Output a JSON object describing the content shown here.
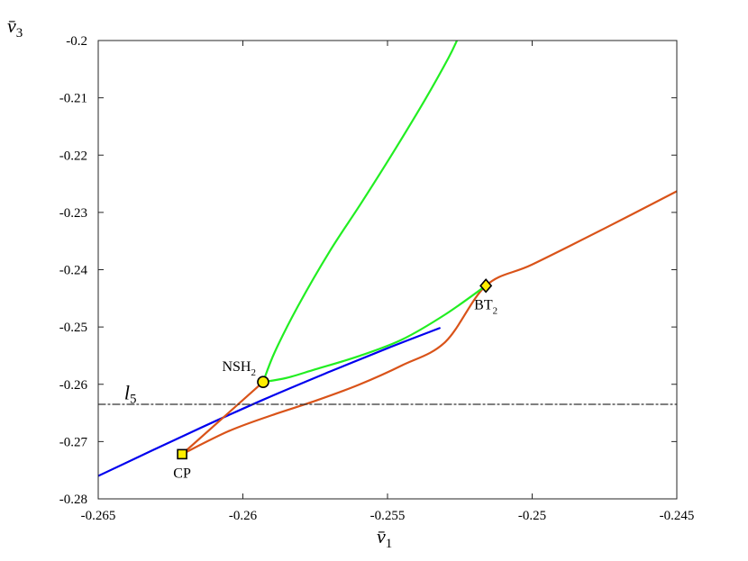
{
  "chart_data": {
    "type": "line",
    "xlabel": "v̄",
    "xlabel_sub": "1",
    "ylabel": "v̄",
    "ylabel_sub": "3",
    "xlim": [
      -0.265,
      -0.245
    ],
    "ylim": [
      -0.28,
      -0.2
    ],
    "xticks": [
      -0.265,
      -0.26,
      -0.255,
      -0.25,
      -0.245
    ],
    "xtick_labels": [
      "-0.265",
      "-0.26",
      "-0.255",
      "-0.25",
      "-0.245"
    ],
    "yticks": [
      -0.2,
      -0.21,
      -0.22,
      -0.23,
      -0.24,
      -0.25,
      -0.26,
      -0.27,
      -0.28
    ],
    "ytick_labels": [
      "-0.2",
      "-0.21",
      "-0.22",
      "-0.23",
      "-0.24",
      "-0.25",
      "-0.26",
      "-0.27",
      "-0.28"
    ],
    "grid": false,
    "colors": {
      "blue": "#0000ee",
      "orange": "#d95319",
      "green": "#22ee22",
      "black": "#333333",
      "marker_fill": "#ffee00"
    },
    "series": [
      {
        "color_key": "blue",
        "x": [
          -0.265,
          -0.2618,
          -0.2593,
          -0.257,
          -0.255,
          -0.2532
        ],
        "y": [
          -0.276,
          -0.2684,
          -0.2627,
          -0.2578,
          -0.2537,
          -0.2502
        ]
      },
      {
        "color_key": "orange",
        "x": [
          -0.2621,
          -0.2593
        ],
        "y": [
          -0.2722,
          -0.2596
        ]
      },
      {
        "color_key": "orange",
        "x": [
          -0.2621,
          -0.2605,
          -0.259,
          -0.2575,
          -0.256,
          -0.2545,
          -0.253,
          -0.2516,
          -0.25,
          -0.2475,
          -0.245
        ],
        "y": [
          -0.2722,
          -0.2682,
          -0.2654,
          -0.2629,
          -0.2601,
          -0.2567,
          -0.2526,
          -0.2428,
          -0.2391,
          -0.2328,
          -0.2263
        ]
      },
      {
        "color_key": "green",
        "x": [
          -0.2593,
          -0.2589,
          -0.2581,
          -0.257,
          -0.2559,
          -0.2548,
          -0.2537,
          -0.2529,
          -0.2526
        ],
        "y": [
          -0.2596,
          -0.2544,
          -0.2464,
          -0.2368,
          -0.2283,
          -0.2195,
          -0.2103,
          -0.2031,
          -0.2
        ],
        "note_key": "upper"
      },
      {
        "color_key": "green",
        "x": [
          -0.2593,
          -0.2585,
          -0.2575,
          -0.256,
          -0.2545,
          -0.253,
          -0.2516
        ],
        "y": [
          -0.2596,
          -0.2589,
          -0.2574,
          -0.2551,
          -0.2522,
          -0.2478,
          -0.2428
        ]
      },
      {
        "color_key": "black",
        "dash": true,
        "x": [
          -0.265,
          -0.245
        ],
        "y": [
          -0.2635,
          -0.2635
        ]
      }
    ],
    "points": [
      {
        "label": "CP",
        "sub": "",
        "x": -0.2621,
        "y": -0.2722,
        "marker": "square",
        "label_pos": "below"
      },
      {
        "label": "NSH",
        "sub": "2",
        "x": -0.2593,
        "y": -0.2596,
        "marker": "circle",
        "label_pos": "upper-left"
      },
      {
        "label": "BT",
        "sub": "2",
        "x": -0.2516,
        "y": -0.2428,
        "marker": "diamond",
        "label_pos": "below"
      }
    ],
    "annotations": [
      {
        "text": "l",
        "sub": "5",
        "x": -0.2641,
        "y": -0.2633
      }
    ]
  }
}
